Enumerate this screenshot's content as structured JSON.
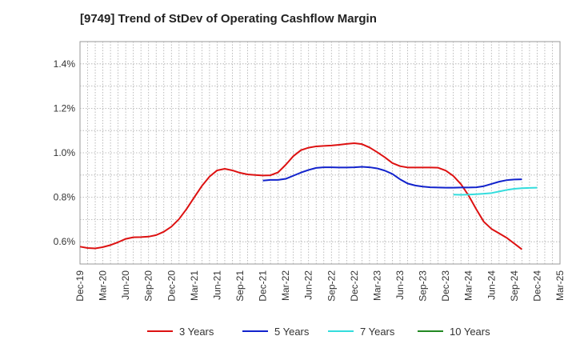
{
  "chart_data": {
    "type": "line",
    "title": "[9749]  Trend of StDev of Operating Cashflow Margin",
    "xlabel": "",
    "ylabel": "",
    "y_tick_labels": [
      "0.6%",
      "0.8%",
      "1.0%",
      "1.2%",
      "1.4%"
    ],
    "y_ticks": [
      0.6,
      0.8,
      1.0,
      1.2,
      1.4
    ],
    "ylim": [
      0.5,
      1.5
    ],
    "x_tick_labels": [
      "Dec-19",
      "Mar-20",
      "Jun-20",
      "Sep-20",
      "Dec-20",
      "Mar-21",
      "Jun-21",
      "Sep-21",
      "Dec-21",
      "Mar-22",
      "Jun-22",
      "Sep-22",
      "Dec-22",
      "Mar-23",
      "Jun-23",
      "Sep-23",
      "Dec-23",
      "Mar-24",
      "Jun-24",
      "Sep-24",
      "Dec-24",
      "Mar-25"
    ],
    "grid": true,
    "legend_position": "bottom",
    "series": [
      {
        "name": "3 Years",
        "color": "#dd1111",
        "start_index": 0,
        "values": [
          0.578,
          0.572,
          0.57,
          0.576,
          0.585,
          0.598,
          0.613,
          0.62,
          0.621,
          0.623,
          0.63,
          0.645,
          0.668,
          0.702,
          0.748,
          0.8,
          0.851,
          0.893,
          0.921,
          0.928,
          0.921,
          0.91,
          0.903,
          0.9,
          0.898,
          0.899,
          0.912,
          0.946,
          0.985,
          1.012,
          1.023,
          1.029,
          1.031,
          1.033,
          1.036,
          1.04,
          1.043,
          1.039,
          1.024,
          1.003,
          0.98,
          0.954,
          0.94,
          0.934,
          0.934,
          0.934,
          0.934,
          0.933,
          0.92,
          0.896,
          0.859,
          0.808,
          0.747,
          0.69,
          0.658,
          0.638,
          0.618,
          0.592,
          0.566
        ]
      },
      {
        "name": "5 Years",
        "color": "#1122cc",
        "start_index": 24,
        "values": [
          0.875,
          0.878,
          0.878,
          0.883,
          0.897,
          0.911,
          0.923,
          0.932,
          0.935,
          0.935,
          0.934,
          0.934,
          0.935,
          0.937,
          0.935,
          0.93,
          0.92,
          0.905,
          0.881,
          0.862,
          0.853,
          0.848,
          0.845,
          0.844,
          0.843,
          0.843,
          0.844,
          0.844,
          0.845,
          0.85,
          0.86,
          0.87,
          0.877,
          0.88,
          0.881
        ]
      },
      {
        "name": "7 Years",
        "color": "#33dddd",
        "start_index": 49,
        "values": [
          0.812,
          0.811,
          0.812,
          0.814,
          0.816,
          0.819,
          0.826,
          0.833,
          0.838,
          0.841,
          0.842,
          0.843
        ]
      },
      {
        "name": "10 Years",
        "color": "#228822",
        "start_index": 0,
        "values": []
      }
    ]
  }
}
